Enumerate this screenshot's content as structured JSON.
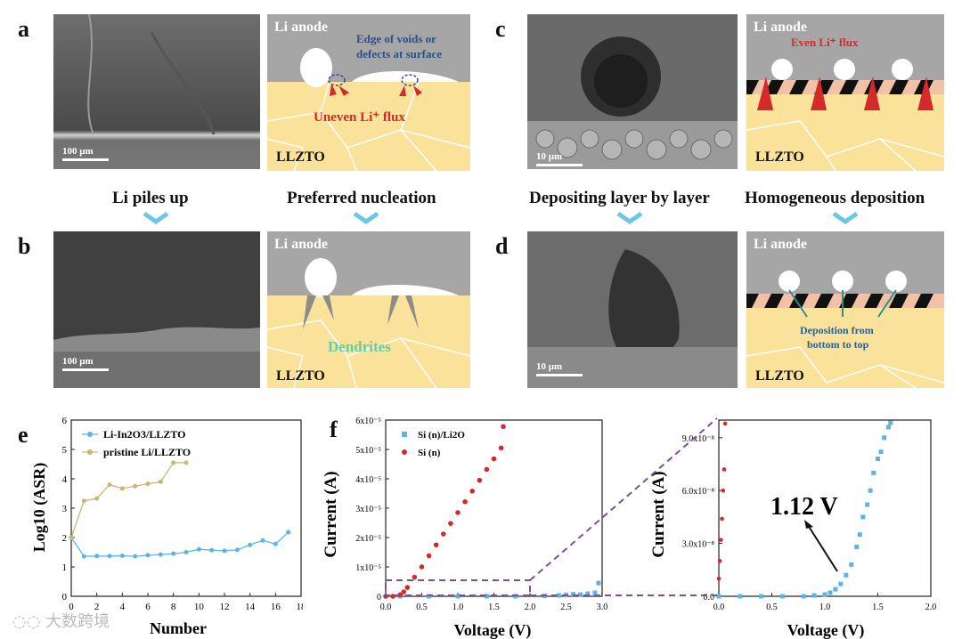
{
  "panels": {
    "a": "a",
    "b": "b",
    "c": "c",
    "d": "d",
    "e": "e",
    "f": "f"
  },
  "captions": {
    "li_piles_up": "Li piles up",
    "preferred_nucleation": "Preferred  nucleation",
    "depositing": "Depositing layer by layer",
    "homogeneous": "Homogeneous  deposition"
  },
  "sem": {
    "a_scale": "100 μm",
    "b_scale": "100 μm",
    "c_scale": "10 μm",
    "d_scale": "10 μm"
  },
  "schematics": {
    "a": {
      "anode": "Li anode",
      "edge1": "Edge of voids or",
      "edge2": "defects at surface",
      "flux": "Uneven Li⁺ flux",
      "llzto": "LLZTO"
    },
    "b": {
      "anode": "Li anode",
      "dendrites": "Dendrites",
      "llzto": "LLZTO"
    },
    "c": {
      "anode": "Li anode",
      "flux": "Even Li⁺ flux",
      "llzto": "LLZTO"
    },
    "d": {
      "anode": "Li anode",
      "dep1": "Deposition from",
      "dep2": "bottom to top",
      "llzto": "LLZTO"
    }
  },
  "watermark": "大数跨境",
  "chart_data": [
    {
      "id": "e",
      "type": "line",
      "title": "",
      "xlabel": "Number",
      "ylabel": "Log10 (ASR)",
      "xlim": [
        0,
        18
      ],
      "ylim": [
        0,
        6
      ],
      "xticks": [
        "0",
        "2",
        "4",
        "6",
        "8",
        "10",
        "12",
        "14",
        "16",
        "18"
      ],
      "yticks": [
        "0",
        "1",
        "2",
        "3",
        "4",
        "5",
        "6"
      ],
      "legend": "top-left",
      "series": [
        {
          "name": "Li-In2O3/LLZTO",
          "color": "#5ab4e5",
          "x": [
            0,
            1,
            2,
            3,
            4,
            5,
            6,
            7,
            8,
            9,
            10,
            11,
            12,
            13,
            14,
            15,
            16,
            17
          ],
          "y": [
            2.0,
            1.36,
            1.37,
            1.37,
            1.38,
            1.36,
            1.4,
            1.42,
            1.45,
            1.5,
            1.6,
            1.57,
            1.55,
            1.58,
            1.75,
            1.9,
            1.78,
            2.18
          ]
        },
        {
          "name": "pristine Li/LLZTO",
          "color": "#c9b772",
          "x": [
            0,
            1,
            2,
            3,
            4,
            5,
            6,
            7,
            8,
            9
          ],
          "y": [
            2.0,
            3.25,
            3.33,
            3.8,
            3.67,
            3.75,
            3.83,
            3.9,
            4.55,
            4.55
          ]
        }
      ]
    },
    {
      "id": "f-left",
      "type": "scatter",
      "title": "",
      "xlabel": "Voltage (V)",
      "ylabel": "Current (A)",
      "xlim": [
        0,
        3
      ],
      "ylim": [
        0,
        6e-05
      ],
      "xticks": [
        "0.0",
        "0.5",
        "1.0",
        "1.5",
        "2.0",
        "2.5",
        "3.0"
      ],
      "yticks": [
        "0",
        "1x10⁻⁵",
        "2x10⁻⁵",
        "3x10⁻⁵",
        "4x10⁻⁵",
        "5x10⁻⁵",
        "6x10⁻⁵"
      ],
      "legend": "top-right",
      "series": [
        {
          "name": "Si (n)/Li2O",
          "color": "#5ab4e5",
          "x": [
            0.2,
            0.6,
            1.0,
            1.4,
            1.8,
            2.2,
            2.4,
            2.5,
            2.6,
            2.7,
            2.8,
            2.9,
            2.95
          ],
          "y": [
            0,
            0,
            0,
            0,
            0,
            1e-07,
            3e-07,
            5e-07,
            7e-07,
            6e-07,
            9e-07,
            1.2e-06,
            4.5e-06
          ]
        },
        {
          "name": "Si (n)",
          "color": "#d42a2a",
          "x": [
            0,
            0.1,
            0.2,
            0.25,
            0.3,
            0.4,
            0.5,
            0.6,
            0.7,
            0.8,
            0.9,
            1.0,
            1.1,
            1.2,
            1.3,
            1.4,
            1.5,
            1.6,
            1.63
          ],
          "y": [
            0,
            0,
            5e-07,
            1.5e-06,
            3e-06,
            6.5e-06,
            1e-05,
            1.38e-05,
            1.75e-05,
            2.12e-05,
            2.48e-05,
            2.85e-05,
            3.22e-05,
            3.58e-05,
            3.95e-05,
            4.32e-05,
            4.68e-05,
            5.05e-05,
            5.78e-05
          ]
        }
      ]
    },
    {
      "id": "f-right",
      "type": "scatter",
      "title": "",
      "xlabel": "Voltage (V)",
      "ylabel": "Current (A)",
      "xlim": [
        0,
        2
      ],
      "ylim": [
        0,
        1e-07
      ],
      "xticks": [
        "0.0",
        "0.5",
        "1.0",
        "1.5",
        "2.0"
      ],
      "yticks": [
        "0.0",
        "3.0x10⁻⁸",
        "6.0x10⁻⁸",
        "9.0x10⁻⁸"
      ],
      "annotation": "1.12 V",
      "series": [
        {
          "name": "Si (n)/Li2O",
          "color": "#5ab4e5",
          "x": [
            0.0,
            0.2,
            0.4,
            0.6,
            0.8,
            0.9,
            1.0,
            1.05,
            1.1,
            1.15,
            1.2,
            1.25,
            1.3,
            1.33,
            1.36,
            1.4,
            1.43,
            1.46,
            1.5,
            1.53,
            1.56,
            1.6,
            1.62
          ],
          "y": [
            0,
            0,
            0,
            0,
            0,
            5e-10,
            1e-09,
            2e-09,
            4e-09,
            7e-09,
            1.2e-08,
            1.8e-08,
            2.8e-08,
            3.5e-08,
            4.5e-08,
            5.2e-08,
            6e-08,
            7e-08,
            7.8e-08,
            8.2e-08,
            9e-08,
            9.6e-08,
            9.85e-08
          ]
        },
        {
          "name": "Si (n)",
          "color": "#d42a2a",
          "x": [
            0.0,
            0.01,
            0.02,
            0.03,
            0.04,
            0.05,
            0.06
          ],
          "y": [
            1e-08,
            2e-08,
            3.2e-08,
            4.4e-08,
            6e-08,
            7.2e-08,
            9.8e-08
          ]
        }
      ]
    }
  ]
}
